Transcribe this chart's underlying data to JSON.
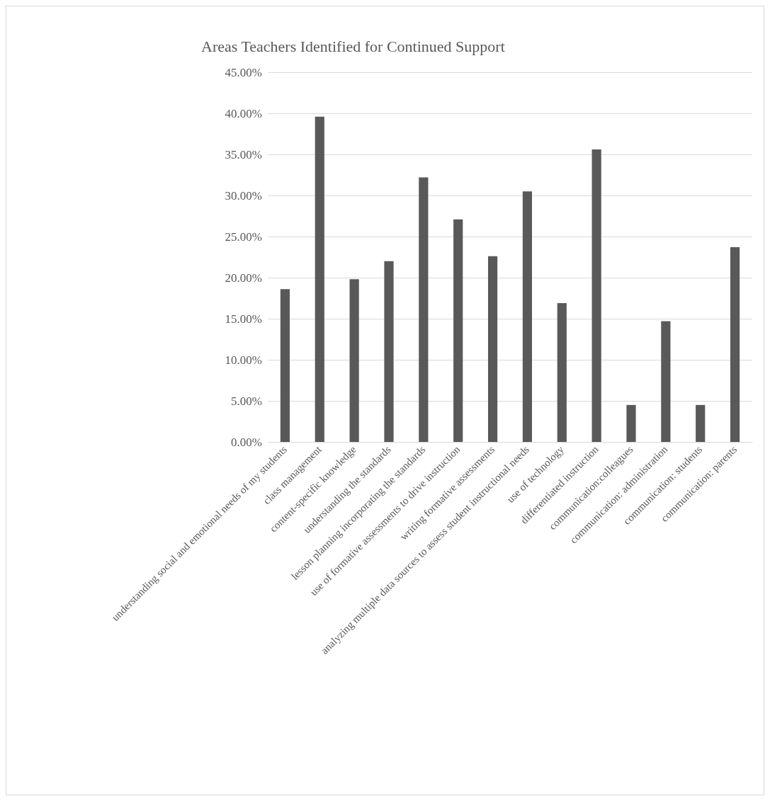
{
  "chart_data": {
    "type": "bar",
    "title": "Areas Teachers Identified for Continued Support",
    "categories": [
      "understanding social and emotional needs of my students",
      "class management",
      "content-specific knowledge",
      "understanding the standards",
      "lesson planning incorporating the standards",
      "use of formative assessments to drive instruction",
      "writing formative assessments",
      "analyzing multiple data sources to assess student instructional needs",
      "use of technology",
      "differentiated instruction",
      "communication:colleagues",
      "communication: administration",
      "communication: students",
      "communication: parents"
    ],
    "values": [
      18.6,
      39.6,
      19.8,
      22.0,
      32.2,
      27.1,
      22.6,
      30.5,
      16.9,
      35.6,
      4.5,
      14.7,
      4.5,
      23.7
    ],
    "color": "#595959",
    "ylim": [
      0,
      45
    ],
    "yticks": [
      {
        "value": 0,
        "label": "0.00%"
      },
      {
        "value": 5,
        "label": "5.00%"
      },
      {
        "value": 10,
        "label": "10.00%"
      },
      {
        "value": 15,
        "label": "15.00%"
      },
      {
        "value": 20,
        "label": "20.00%"
      },
      {
        "value": 25,
        "label": "25.00%"
      },
      {
        "value": 30,
        "label": "30.00%"
      },
      {
        "value": 35,
        "label": "35.00%"
      },
      {
        "value": 40,
        "label": "40.00%"
      },
      {
        "value": 45,
        "label": "45.00%"
      }
    ],
    "grid": "y"
  }
}
